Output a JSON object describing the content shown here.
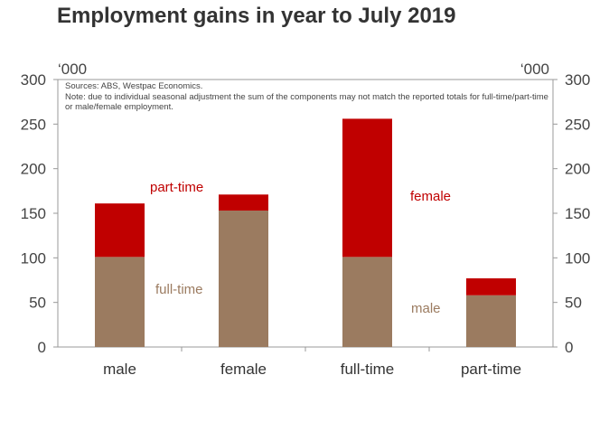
{
  "chart_data": {
    "type": "stacked-bar",
    "title": "Employment gains in year to July 2019",
    "unit_left": "‘000",
    "unit_right": "‘000",
    "sources": "Sources: ABS, Westpac Economics.",
    "note": "Note: due to individual seasonal adjustment the sum of the components may not match the reported totals for full-time/part-time  or male/female employment.",
    "categories": [
      "male",
      "female",
      "full-time",
      "part-time"
    ],
    "series": [
      {
        "values": [
          101,
          153,
          101,
          58
        ],
        "color": "#9b7b60"
      },
      {
        "values": [
          60,
          18,
          155,
          19
        ],
        "color": "#c00000"
      }
    ],
    "annotations": [
      {
        "text": "part-time",
        "color": "#c00000"
      },
      {
        "text": "full-time",
        "color": "#9b7b60"
      },
      {
        "text": "female",
        "color": "#c00000"
      },
      {
        "text": "male",
        "color": "#9b7b60"
      }
    ],
    "ylim": [
      0,
      300
    ],
    "yticks": [
      0,
      50,
      100,
      150,
      200,
      250,
      300
    ],
    "grid": false,
    "legend": "none"
  }
}
